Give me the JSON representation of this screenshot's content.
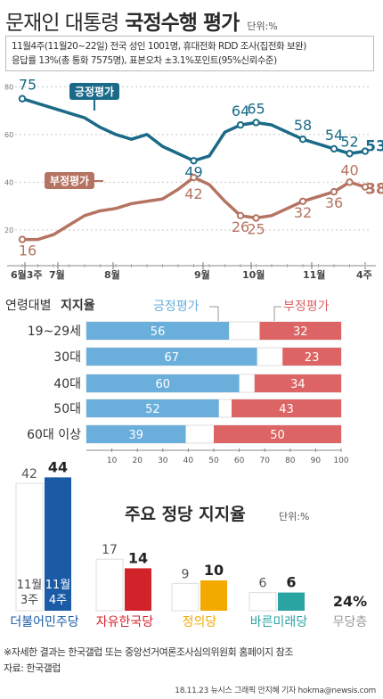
{
  "header": {
    "title_light": "문재인 대통령",
    "title_bold": "국정수행 평가",
    "unit": "단위:%",
    "survey_line1": "11월4주(11월20~22일) 전국 성인 1001명, 휴대전화 RDD 조사(집전화 보완)",
    "survey_line2": "응답률 13%(총 통화 7575명), 표본오차 ±3.1%포인트(95%신뢰수준)"
  },
  "colors": {
    "positive": "#1a6a88",
    "negative": "#b57462",
    "age_positive": "#6aaedc",
    "age_negative": "#dc6464",
    "minjoo": "#1b5ba6",
    "hankook": "#d2232a",
    "justice": "#f2a900",
    "bareun": "#2aa3a3",
    "none": "#222222"
  },
  "chart_data": [
    {
      "type": "line",
      "yticks": [
        20,
        40,
        60,
        80
      ],
      "ylim": [
        5,
        82
      ],
      "xlabels": [
        "6월3주",
        "7월",
        "8월",
        "9월",
        "10월",
        "11월",
        "4주"
      ],
      "series": [
        {
          "name": "긍정평가",
          "x": [
            0,
            1,
            2,
            3,
            4,
            5,
            6,
            7,
            8,
            9,
            10,
            11,
            12,
            13,
            14,
            15,
            16,
            17,
            18,
            19,
            20,
            21,
            22
          ],
          "values": [
            75,
            73,
            71,
            69,
            67,
            63,
            60,
            58,
            60,
            55,
            52,
            49,
            51,
            61,
            64,
            65,
            64,
            61,
            58,
            56,
            54,
            52,
            53
          ],
          "labels": {
            "0": "75",
            "11": "49",
            "14": "64",
            "15": "65",
            "18": "58",
            "20": "54",
            "21": "52",
            "22": "53"
          }
        },
        {
          "name": "부정평가",
          "x": [
            0,
            1,
            2,
            3,
            4,
            5,
            6,
            7,
            8,
            9,
            10,
            11,
            12,
            13,
            14,
            15,
            16,
            17,
            18,
            19,
            20,
            21,
            22
          ],
          "values": [
            16,
            16,
            18,
            22,
            26,
            28,
            29,
            31,
            32,
            33,
            37,
            42,
            39,
            32,
            26,
            25,
            26,
            29,
            32,
            34,
            36,
            40,
            38
          ],
          "labels": {
            "0": "16",
            "11": "42",
            "14": "26",
            "15": "25",
            "18": "32",
            "20": "36",
            "21": "40",
            "22": "38"
          }
        }
      ]
    },
    {
      "type": "bar",
      "title_light": "연령대별",
      "title_bold": "지지율",
      "legend": [
        "긍정평가",
        "부정평가"
      ],
      "categories": [
        "19~29세",
        "30대",
        "40대",
        "50대",
        "60대 이상"
      ],
      "series": [
        {
          "name": "긍정평가",
          "values": [
            56,
            67,
            60,
            52,
            39
          ]
        },
        {
          "name": "부정평가",
          "values": [
            32,
            23,
            34,
            43,
            50
          ]
        }
      ],
      "xticks": [
        10,
        20,
        30,
        40,
        50,
        60,
        70,
        80,
        90,
        100
      ],
      "xlim": [
        0,
        100
      ]
    },
    {
      "type": "bar",
      "title": "주요 정당 지지율",
      "unit": "단위:%",
      "period_labels": [
        "11월 3주",
        "11월 4주"
      ],
      "categories": [
        "더불어민주당",
        "자유한국당",
        "정의당",
        "바른미래당",
        "무당층"
      ],
      "series": [
        {
          "name": "11월 3주",
          "values": [
            42,
            17,
            9,
            6,
            null
          ]
        },
        {
          "name": "11월 4주",
          "values": [
            44,
            14,
            10,
            6,
            24
          ]
        }
      ],
      "none_label": "24%"
    }
  ],
  "footer": {
    "note": "※자세한 결과는 한국갤럽 또는 중앙선거여론조사심의위원회 홈페이지 참조",
    "source": "자료: 한국갤럽",
    "credit": "18.11.23 뉴시스 그래픽 안지혜 기자 hokma@newsis.com"
  }
}
